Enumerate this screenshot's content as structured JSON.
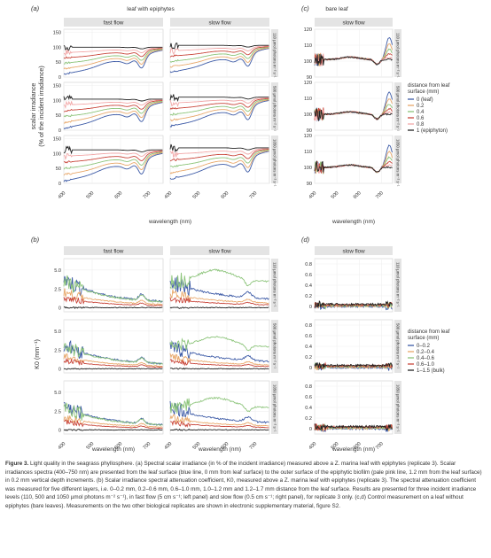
{
  "colors": {
    "strip_bg": "#e4e4e4",
    "grid": "#efefef",
    "panel_border": "#cfcfcf",
    "series": [
      "#3c5aa6",
      "#e8a86a",
      "#8cc47a",
      "#c9463b",
      "#f2a8a8",
      "#222222"
    ]
  },
  "chart_data": [
    {
      "type": "line",
      "label": "(a)",
      "title": "leaf with epiphytes",
      "columns": [
        "fast flow",
        "slow flow"
      ],
      "rows": [
        "110 µmol photons m⁻² s⁻¹",
        "500 µmol photons m⁻² s⁻¹",
        "1050 µmol photons m⁻² s⁻¹"
      ],
      "ylabel": "scalar irradiance\n(% of the incident irradiance)",
      "xlabel": "wavelength (nm)",
      "xlim": [
        400,
        750
      ],
      "xticks": [
        "400",
        "500",
        "600",
        "700"
      ],
      "ylim": [
        0,
        160
      ],
      "yticks": [
        "0",
        "50",
        "100",
        "150"
      ],
      "series_names": [
        "0 (leaf)",
        "0.2",
        "0.4",
        "0.6",
        "0.8",
        "1 (epiphyton)"
      ],
      "approx_series": [
        {
          "name": "0 (leaf)",
          "x": [
            400,
            450,
            500,
            550,
            600,
            640,
            660,
            675,
            690,
            710,
            750
          ],
          "y": [
            10,
            18,
            30,
            40,
            55,
            58,
            45,
            25,
            45,
            60,
            70
          ]
        },
        {
          "name": "0.2",
          "x": [
            400,
            450,
            500,
            550,
            600,
            640,
            660,
            675,
            690,
            710,
            750
          ],
          "y": [
            20,
            30,
            42,
            55,
            68,
            72,
            62,
            45,
            60,
            75,
            82
          ]
        },
        {
          "name": "0.4",
          "x": [
            400,
            450,
            500,
            550,
            600,
            640,
            660,
            675,
            690,
            710,
            750
          ],
          "y": [
            35,
            45,
            55,
            65,
            78,
            82,
            75,
            62,
            75,
            88,
            95
          ]
        },
        {
          "name": "0.6",
          "x": [
            400,
            450,
            500,
            550,
            600,
            640,
            660,
            675,
            690,
            710,
            750
          ],
          "y": [
            55,
            62,
            70,
            80,
            90,
            95,
            90,
            82,
            92,
            100,
            108
          ]
        },
        {
          "name": "0.8",
          "x": [
            400,
            450,
            500,
            550,
            600,
            640,
            660,
            675,
            690,
            710,
            750
          ],
          "y": [
            80,
            85,
            90,
            96,
            102,
            106,
            104,
            100,
            106,
            110,
            115
          ]
        },
        {
          "name": "1 (epiphyton)",
          "x": [
            400,
            450,
            500,
            550,
            600,
            640,
            660,
            675,
            690,
            710,
            750
          ],
          "y": [
            100,
            100,
            100,
            101,
            102,
            103,
            103,
            102,
            104,
            106,
            108
          ]
        }
      ]
    },
    {
      "type": "line",
      "label": "(c)",
      "title": "bare leaf",
      "columns": [
        "slow flow"
      ],
      "rows": [
        "110 µmol photons m⁻² s⁻¹",
        "500 µmol photons m⁻² s⁻¹",
        "1050 µmol photons m⁻² s⁻¹"
      ],
      "xlim": [
        400,
        750
      ],
      "xticks": [
        "400",
        "500",
        "600",
        "700"
      ],
      "ylim": [
        90,
        120
      ],
      "yticks": [
        "90",
        "100",
        "110",
        "120"
      ],
      "legend_title": "distance from leaf\nsurface (mm)",
      "legend": [
        "0 (leaf)",
        "0.2",
        "0.4",
        "0.6",
        "0.8",
        "1 (epiphyton)"
      ],
      "legend_position": "right"
    },
    {
      "type": "line",
      "label": "(b)",
      "columns": [
        "fast flow",
        "slow flow"
      ],
      "rows": [
        "110 µmol photons m⁻² s⁻¹",
        "500 µmol photons m⁻² s⁻¹",
        "1050 µmol photons m⁻² s⁻¹"
      ],
      "ylabel": "K0 (mm⁻¹)",
      "xlabel": "wavelength (nm)",
      "xlim": [
        400,
        750
      ],
      "xticks": [
        "400",
        "500",
        "600",
        "700"
      ],
      "ylim": [
        -0.5,
        6.5
      ],
      "yticks": [
        "0",
        "2.5",
        "5.0"
      ]
    },
    {
      "type": "line",
      "label": "(d)",
      "columns": [
        "slow flow"
      ],
      "rows": [
        "110 µmol photons m⁻² s⁻¹",
        "500 µmol photons m⁻² s⁻¹",
        "1050 µmol photons m⁻² s⁻¹"
      ],
      "xlabel": "wavelength (nm)",
      "xlim": [
        400,
        750
      ],
      "xticks": [
        "400",
        "500",
        "600",
        "700"
      ],
      "ylim": [
        -0.1,
        0.9
      ],
      "yticks": [
        "0",
        "0.2",
        "0.4",
        "0.6",
        "0.8"
      ],
      "legend_title": "distance from leaf\nsurface (mm)",
      "legend": [
        "0–0.2",
        "0.2–0.4",
        "0.4–0.6",
        "0.6–1.0",
        "1–1.5 (bulk)"
      ],
      "legend_position": "right"
    }
  ],
  "caption": {
    "lead": "Figure 3.",
    "text": " Light quality in the seagrass phyllosphere. (a) Spectral scalar irradiance (in % of the incident irradiance) measured above a Z. marina leaf with epiphytes (replicate 3). Scalar irradiances spectra (400–750 nm) are presented from the leaf surface (blue line, 0 mm from leaf surface) to the outer surface of the epiphytic biofilm (pale pink line, 1.2 mm from the leaf surface) in 0.2 mm vertical depth increments. (b) Scalar irradiance spectral attenuation coefficient, K0, measured above a Z. marina leaf with epiphytes (replicate 3). The spectral attenuation coefficient was measured for five different layers, i.e. 0–0.2 mm, 0.2–0.6 mm, 0.6–1.0 mm, 1.0–1.2 mm and 1.2–1.7 mm distance from the leaf surface. Results are presented for three incident irradiance levels (110, 500 and 1050 µmol photons m⁻² s⁻¹), in fast flow (5 cm s⁻¹; left panel) and slow flow (0.5 cm s⁻¹; right panel), for replicate 3 only. (c,d) Control measurement on a leaf without epiphytes (bare leaves). Measurements on the two other biological replicates are shown in electronic supplementary material, figure S2."
  }
}
